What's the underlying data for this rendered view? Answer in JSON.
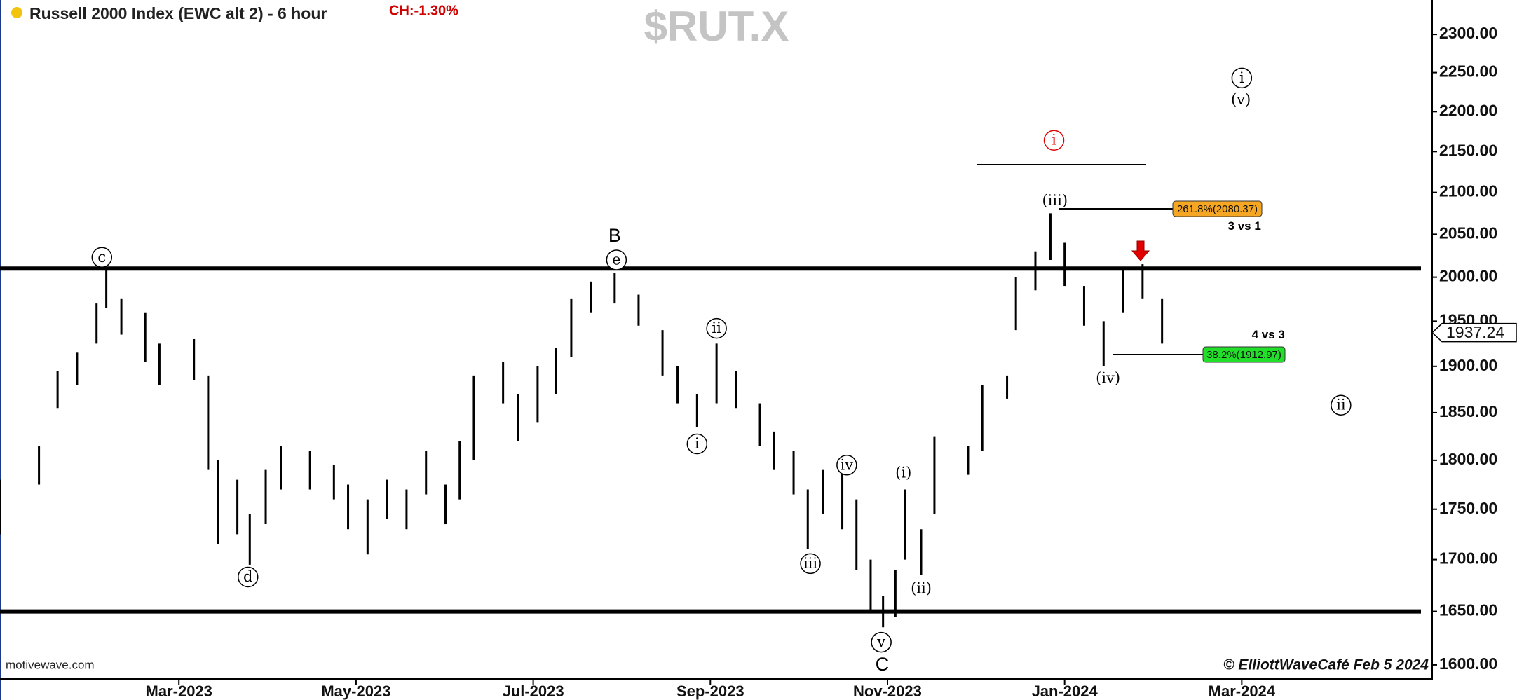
{
  "chart_data": {
    "type": "ohlc",
    "title": "Russell 2000 Index (EWC alt 2) - 6 hour",
    "change": "CH:-1.30%",
    "symbol": "$RUT.X",
    "source": "motivewave.com",
    "copyright": "© ElliottWaveCafé Feb 5 2024",
    "color": "#000000",
    "log": true,
    "x": [
      0.98,
      1.42,
      1.63,
      1.85,
      2.07,
      2.18,
      2.35,
      2.62,
      2.78,
      3.17,
      3.33,
      3.44,
      3.66,
      3.8,
      3.98,
      4.15,
      4.48,
      4.75,
      4.91,
      5.13,
      5.35,
      5.57,
      5.79,
      6.01,
      6.17,
      6.33,
      6.66,
      6.83,
      7.05,
      7.26,
      7.43,
      7.65,
      7.92,
      8.19,
      8.46,
      8.63,
      8.85,
      9.07,
      9.29,
      9.56,
      9.72,
      9.94,
      10.1,
      10.27,
      10.49,
      10.65,
      10.81,
      10.95,
      11.09,
      11.2,
      11.38,
      11.53,
      11.91,
      12.07,
      12.35,
      12.45,
      12.67,
      12.84,
      13.0,
      13.22,
      13.44,
      13.66,
      13.88,
      14.1
    ],
    "high": [
      1780,
      1815,
      1895,
      1915,
      1970,
      2015,
      1975,
      1960,
      1925,
      1930,
      1890,
      1800,
      1780,
      1745,
      1790,
      1815,
      1810,
      1795,
      1775,
      1760,
      1780,
      1770,
      1810,
      1775,
      1820,
      1890,
      1905,
      1870,
      1900,
      1920,
      1975,
      1995,
      2005,
      1980,
      1940,
      1900,
      1870,
      1925,
      1895,
      1860,
      1830,
      1810,
      1770,
      1790,
      1795,
      1760,
      1700,
      1665,
      1690,
      1770,
      1730,
      1825,
      1815,
      1880,
      1890,
      2000,
      2030,
      2075,
      2040,
      1990,
      1950,
      2010,
      2015,
      1975
    ],
    "low": [
      1725,
      1775,
      1855,
      1880,
      1925,
      1965,
      1935,
      1905,
      1880,
      1885,
      1790,
      1715,
      1725,
      1695,
      1735,
      1770,
      1770,
      1760,
      1730,
      1705,
      1740,
      1730,
      1765,
      1735,
      1760,
      1800,
      1860,
      1820,
      1840,
      1870,
      1910,
      1960,
      1970,
      1945,
      1890,
      1860,
      1835,
      1860,
      1855,
      1815,
      1790,
      1765,
      1710,
      1745,
      1730,
      1690,
      1650,
      1635,
      1645,
      1700,
      1685,
      1745,
      1785,
      1810,
      1865,
      1940,
      1985,
      2020,
      1990,
      1945,
      1900,
      1960,
      1975,
      1925
    ],
    "last": 1937.24,
    "levels": [
      2010,
      1650
    ],
    "fibs": [
      {
        "label": "261.8%(2080.37)",
        "value": 2080.37,
        "color": "#f5a623"
      },
      {
        "label": "38.2%(1912.97)",
        "value": 1912.97,
        "color": "#22e02a"
      }
    ],
    "annotations": [
      {
        "text": "c",
        "x": 2.13,
        "y": 2023,
        "circled": true
      },
      {
        "text": "d",
        "x": 3.78,
        "y": 1683,
        "circled": true
      },
      {
        "text": "B",
        "x": 7.92,
        "y": 2048,
        "circled": false
      },
      {
        "text": "e",
        "x": 7.94,
        "y": 2020,
        "circled": true
      },
      {
        "text": "ii",
        "x": 9.07,
        "y": 1942,
        "circled": true
      },
      {
        "text": "i",
        "x": 8.85,
        "y": 1817,
        "circled": true
      },
      {
        "text": "iii",
        "x": 10.13,
        "y": 1696,
        "circled": true
      },
      {
        "text": "iv",
        "x": 10.54,
        "y": 1795,
        "circled": true
      },
      {
        "text": "v",
        "x": 10.93,
        "y": 1621,
        "circled": true
      },
      {
        "text": "C",
        "x": 10.94,
        "y": 1600,
        "circled": false
      },
      {
        "text": "(i)",
        "x": 11.18,
        "y": 1787,
        "circled": false
      },
      {
        "text": "(ii)",
        "x": 11.38,
        "y": 1672,
        "circled": false
      },
      {
        "text": "(iii)",
        "x": 12.89,
        "y": 2090,
        "circled": false
      },
      {
        "text": "(iv)",
        "x": 13.49,
        "y": 1887,
        "circled": false
      },
      {
        "text": "i",
        "x": 12.88,
        "y": 2164,
        "circled": true,
        "color": "#e00000"
      },
      {
        "text": "i",
        "x": 15.0,
        "y": 2243,
        "circled": true
      },
      {
        "text": "(v)",
        "x": 14.99,
        "y": 2215,
        "circled": false
      },
      {
        "text": "ii",
        "x": 16.12,
        "y": 1858,
        "circled": true
      },
      {
        "text": "3 vs 1",
        "x": 15.03,
        "y": 2060,
        "circled": false,
        "note": true
      },
      {
        "text": "4 vs 3",
        "x": 15.3,
        "y": 1935,
        "circled": false,
        "note": true
      }
    ],
    "xlim": [
      0.98,
      17.15
    ],
    "ylim": [
      1589,
      2346
    ],
    "xticks": [
      {
        "value": 3,
        "label": "Mar-2023"
      },
      {
        "value": 5,
        "label": "May-2023"
      },
      {
        "value": 7,
        "label": "Jul-2023"
      },
      {
        "value": 9,
        "label": "Sep-2023"
      },
      {
        "value": 11,
        "label": "Nov-2023"
      },
      {
        "value": 13,
        "label": "Jan-2024"
      },
      {
        "value": 15,
        "label": "Mar-2024"
      }
    ],
    "yticks": [
      {
        "value": 1600,
        "label": "1600.00"
      },
      {
        "value": 1650,
        "label": "1650.00"
      },
      {
        "value": 1700,
        "label": "1700.00"
      },
      {
        "value": 1750,
        "label": "1750.00"
      },
      {
        "value": 1800,
        "label": "1800.00"
      },
      {
        "value": 1850,
        "label": "1850.00"
      },
      {
        "value": 1900,
        "label": "1900.00"
      },
      {
        "value": 1950,
        "label": "1950.00"
      },
      {
        "value": 2000,
        "label": "2000.00"
      },
      {
        "value": 2050,
        "label": "2050.00"
      },
      {
        "value": 2100,
        "label": "2100.00"
      },
      {
        "value": 2150,
        "label": "2150.00"
      },
      {
        "value": 2200,
        "label": "2200.00"
      },
      {
        "value": 2250,
        "label": "2250.00"
      },
      {
        "value": 2300,
        "label": "2300.00"
      }
    ]
  }
}
